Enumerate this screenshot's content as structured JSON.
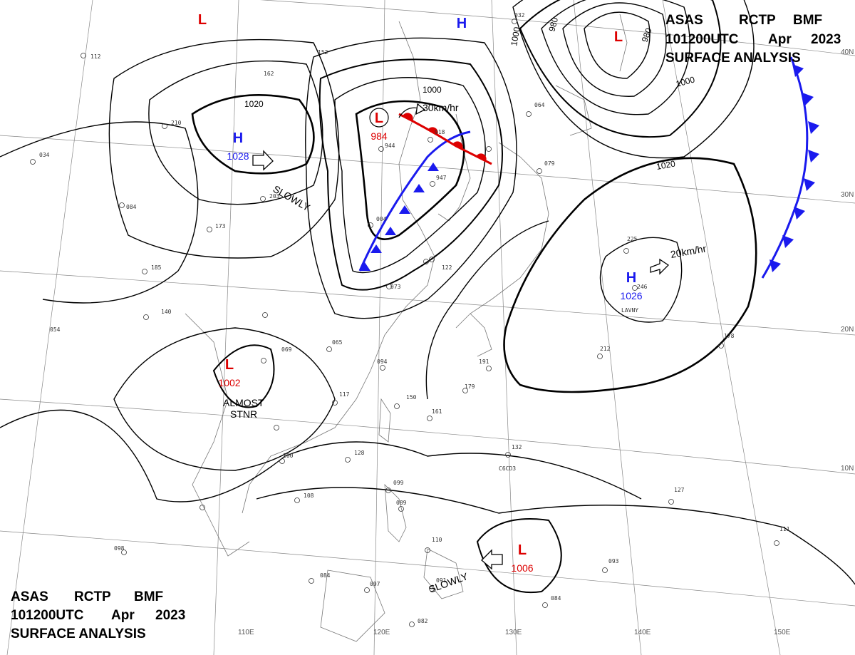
{
  "header_top_right": {
    "line1": [
      "ASAS",
      "RCTP",
      "BMF"
    ],
    "line2": [
      "101200UTC",
      "Apr",
      "2023"
    ],
    "line3": "SURFACE ANALYSIS"
  },
  "header_bottom_left": {
    "line1": [
      "ASAS",
      "RCTP",
      "BMF"
    ],
    "line2": [
      "101200UTC",
      "Apr",
      "2023"
    ],
    "line3": "SURFACE ANALYSIS"
  },
  "latitude_labels": [
    "40N",
    "30N",
    "20N",
    "10N"
  ],
  "longitude_labels": [
    "110E",
    "120E",
    "130E",
    "140E",
    "150E"
  ],
  "colors": {
    "low": "#dd0000",
    "high": "#1a1aee",
    "isobar": "#000000",
    "grid": "#888888",
    "coast": "#777777"
  },
  "pressure_centers": [
    {
      "type": "L",
      "value": ""
    },
    {
      "type": "L",
      "value": ""
    },
    {
      "type": "H",
      "value": ""
    },
    {
      "type": "H",
      "value": "1028"
    },
    {
      "type": "L",
      "value": "984"
    },
    {
      "type": "H",
      "value": "1026"
    },
    {
      "type": "L",
      "value": "1002"
    },
    {
      "type": "L",
      "value": "1006"
    }
  ],
  "isobar_labels": [
    "1020",
    "1000",
    "980",
    "980",
    "1000",
    "1000",
    "1020"
  ],
  "motions": [
    "SLOWLY",
    "30km/hr",
    "20km/hr",
    "ALMOST",
    "STNR",
    "SLOWLY"
  ],
  "station_labels": [
    "152",
    "162",
    "112",
    "210",
    "185",
    "140",
    "054",
    "069",
    "065",
    "094",
    "117",
    "150",
    "128",
    "099",
    "089",
    "110",
    "097",
    "091",
    "082",
    "191",
    "179",
    "161",
    "132",
    "212",
    "178",
    "127",
    "111",
    "093",
    "084",
    "246",
    "225",
    "079",
    "064",
    "032",
    "947",
    "918",
    "944",
    "004",
    "122",
    "073",
    "203",
    "173",
    "100",
    "108",
    "098",
    "034",
    "084",
    "084",
    "C6CD3",
    "LAVNY"
  ]
}
